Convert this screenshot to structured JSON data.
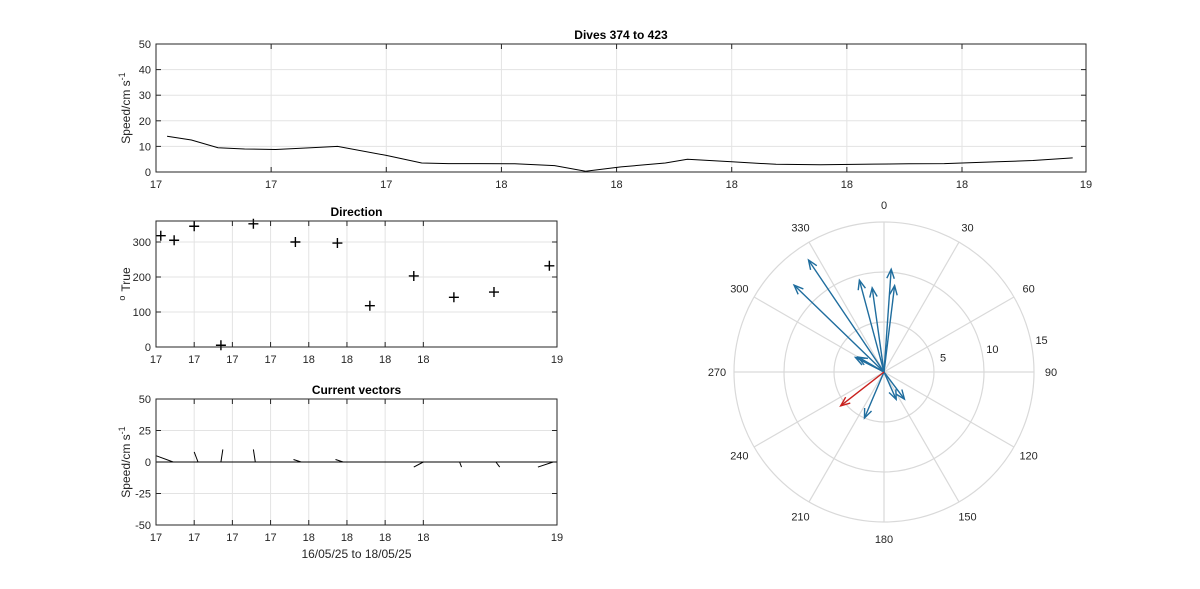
{
  "chart_data": [
    {
      "id": "speed",
      "type": "line",
      "title": "Dives 374 to 423",
      "xlabel": "",
      "ylabel": "Speed/cm s",
      "ylabel_sup": "-1",
      "ylim": [
        0,
        50
      ],
      "yticks": [
        0,
        10,
        20,
        30,
        40,
        50
      ],
      "xlim": [
        16.9,
        19.0
      ],
      "xticks": [
        16.9,
        17.16,
        17.42,
        17.68,
        17.94,
        18.2,
        18.46,
        18.72,
        19.0
      ],
      "xticklabels": [
        "17",
        "17",
        "17",
        "18",
        "18",
        "18",
        "18",
        "18",
        "19"
      ],
      "grid": true,
      "series": [
        {
          "color": "#000000",
          "x": [
            16.925,
            16.98,
            17.04,
            17.1,
            17.17,
            17.25,
            17.31,
            17.42,
            17.5,
            17.56,
            17.63,
            17.71,
            17.8,
            17.87,
            17.95,
            18.05,
            18.1,
            18.2,
            18.3,
            18.4,
            18.52,
            18.6,
            18.68,
            18.8,
            18.88,
            18.97
          ],
          "y": [
            14,
            12.5,
            9.5,
            9,
            8.8,
            9.5,
            10,
            6.5,
            3.5,
            3.3,
            3.3,
            3.2,
            2.5,
            0.3,
            2,
            3.5,
            5,
            4,
            3,
            2.8,
            3.1,
            3.2,
            3.3,
            4,
            4.5,
            5.5
          ]
        }
      ]
    },
    {
      "id": "direction",
      "type": "scatter",
      "title": "Direction",
      "xlabel": "",
      "ylabel": "True",
      "ylabel_pre": "o",
      "ylim": [
        0,
        360
      ],
      "yticks": [
        0,
        100,
        200,
        300
      ],
      "xlim": [
        16.9,
        19.0
      ],
      "xticks": [
        16.9,
        17.1,
        17.3,
        17.5,
        17.7,
        17.9,
        18.1,
        18.3,
        19.0
      ],
      "xticklabels": [
        "17",
        "17",
        "17",
        "17",
        "18",
        "18",
        "18",
        "18",
        "19"
      ],
      "grid": true,
      "marker": "+",
      "x": [
        16.925,
        16.995,
        17.1,
        17.24,
        17.41,
        17.63,
        17.85,
        18.02,
        18.25,
        18.46,
        18.67,
        18.96
      ],
      "y": [
        318,
        305,
        345,
        5,
        352,
        300,
        297,
        118,
        203,
        142,
        157,
        232
      ]
    },
    {
      "id": "vectors",
      "type": "line",
      "title": "Current vectors",
      "xlabel": "16/05/25 to 18/05/25",
      "ylabel": "Speed/cm s",
      "ylabel_sup": "-1",
      "ylim": [
        -50,
        50
      ],
      "yticks": [
        -50,
        -25,
        0,
        25,
        50
      ],
      "xlim": [
        16.9,
        19.0
      ],
      "xticks": [
        16.9,
        17.1,
        17.3,
        17.5,
        17.7,
        17.9,
        18.1,
        18.3,
        19.0
      ],
      "xticklabels": [
        "17",
        "17",
        "17",
        "17",
        "18",
        "18",
        "18",
        "18",
        "19"
      ],
      "grid": true,
      "segments": [
        {
          "x0": 16.9,
          "y0": 0,
          "x1": 16.99,
          "y1": 0
        },
        {
          "x0": 16.9,
          "y0": 5,
          "x1": 16.99,
          "y1": 0
        },
        {
          "x0": 17.1,
          "y0": 8,
          "x1": 17.12,
          "y1": 0
        },
        {
          "x0": 17.24,
          "y0": 0,
          "x1": 17.25,
          "y1": 10
        },
        {
          "x0": 17.41,
          "y0": 10,
          "x1": 17.42,
          "y1": 0
        },
        {
          "x0": 17.62,
          "y0": 2,
          "x1": 17.66,
          "y1": 0
        },
        {
          "x0": 17.84,
          "y0": 2,
          "x1": 17.88,
          "y1": 0
        },
        {
          "x0": 18.25,
          "y0": -4,
          "x1": 18.3,
          "y1": 0
        },
        {
          "x0": 18.5,
          "y0": -4,
          "x1": 18.49,
          "y1": 0
        },
        {
          "x0": 18.7,
          "y0": -4,
          "x1": 18.68,
          "y1": 0
        },
        {
          "x0": 18.9,
          "y0": -4,
          "x1": 18.98,
          "y1": 0
        }
      ]
    },
    {
      "id": "compass",
      "type": "scatter",
      "title": "",
      "rlim": [
        0,
        15
      ],
      "rticks": [
        5,
        10,
        15
      ],
      "theta_ticks": [
        0,
        30,
        60,
        90,
        120,
        150,
        180,
        210,
        240,
        270,
        300,
        330
      ],
      "theta_ticklabels": [
        "0",
        "30",
        "60",
        "90",
        "120",
        "150",
        "180",
        "210",
        "240",
        "270",
        "300",
        "330"
      ],
      "vectors": [
        {
          "direction": 326,
          "speed": 13.5,
          "color": "#1f6d9e"
        },
        {
          "direction": 314,
          "speed": 12.5,
          "color": "#1f6d9e"
        },
        {
          "direction": 4,
          "speed": 10.3,
          "color": "#1f6d9e"
        },
        {
          "direction": 345,
          "speed": 9.5,
          "color": "#1f6d9e"
        },
        {
          "direction": 352,
          "speed": 8.5,
          "color": "#1f6d9e"
        },
        {
          "direction": 7,
          "speed": 8.7,
          "color": "#1f6d9e"
        },
        {
          "direction": 297,
          "speed": 3.2,
          "color": "#1f6d9e"
        },
        {
          "direction": 300,
          "speed": 3.0,
          "color": "#1f6d9e"
        },
        {
          "direction": 143,
          "speed": 3.4,
          "color": "#1f6d9e"
        },
        {
          "direction": 156,
          "speed": 3.0,
          "color": "#1f6d9e"
        },
        {
          "direction": 203,
          "speed": 5.0,
          "color": "#1f6d9e"
        },
        {
          "direction": 232,
          "speed": 5.5,
          "color": "#c9201d"
        }
      ]
    }
  ]
}
